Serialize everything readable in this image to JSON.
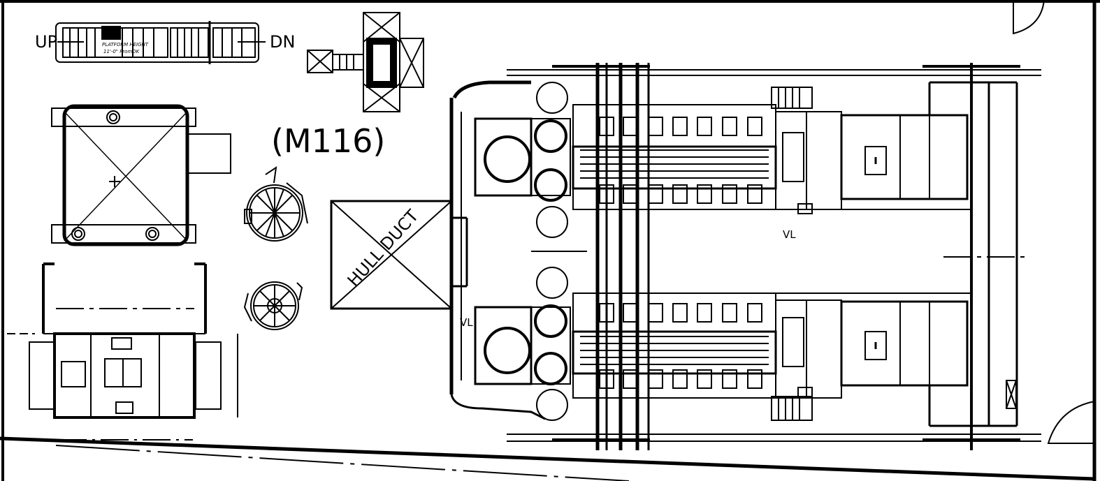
{
  "drawing": {
    "room_tag": "(M116)",
    "stair": {
      "up_label": "UP",
      "down_label": "DN",
      "note_line1": "PLATFORM HEIGHT",
      "note_line2": "11'-0\" FromDK"
    },
    "hull_duct_label": "HULL DUCT",
    "valve_label_1": "VL",
    "valve_label_2": "VL"
  },
  "colors": {
    "ink": "#000000",
    "paper": "#ffffff"
  }
}
